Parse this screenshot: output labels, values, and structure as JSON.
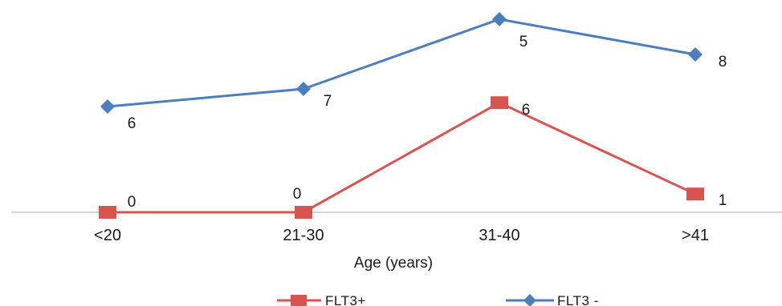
{
  "chart_data": {
    "type": "line",
    "categories": [
      "<20",
      "21-30",
      "31-40",
      ">41"
    ],
    "xlabel": "Age (years)",
    "ylabel": "",
    "title": "",
    "legend_position": "bottom",
    "grid": false,
    "series": [
      {
        "name": "FLT3 -",
        "values": [
          6,
          7,
          5,
          8
        ],
        "labels": [
          "6",
          "7",
          "5",
          "8"
        ],
        "color": "#4a7ebf",
        "marker": "diamond"
      },
      {
        "name": "FLT3+",
        "values": [
          0,
          0,
          6,
          1
        ],
        "labels": [
          "0",
          "0",
          "6",
          "1"
        ],
        "color": "#d9534f",
        "marker": "square"
      }
    ]
  }
}
